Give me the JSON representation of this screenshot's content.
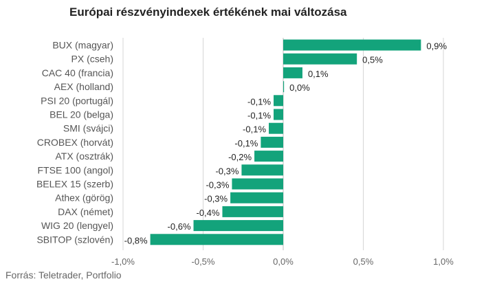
{
  "chart_data": {
    "type": "bar",
    "orientation": "horizontal",
    "title": "Európai részvényindexek értékének mai változása",
    "xlabel": "",
    "ylabel": "",
    "xlim": [
      -1.0,
      1.0
    ],
    "x_ticks": [
      -1.0,
      -0.5,
      0.0,
      0.5,
      1.0
    ],
    "x_tick_labels": [
      "-1,0%",
      "-0,5%",
      "0,0%",
      "0,5%",
      "1,0%"
    ],
    "grid": true,
    "bar_color": "#13a37b",
    "categories": [
      "BUX (magyar)",
      "PX (cseh)",
      "CAC 40 (francia)",
      "AEX (holland)",
      "PSI 20 (portugál)",
      "BEL 20 (belga)",
      "SMI (svájci)",
      "CROBEX (horvát)",
      "ATX (osztrák)",
      "FTSE 100 (angol)",
      "BELEX 15 (szerb)",
      "Athex (görög)",
      "DAX (német)",
      "WIG 20 (lengyel)",
      "SBITOP (szlovén)"
    ],
    "values": [
      0.86,
      0.46,
      0.12,
      0.005,
      -0.06,
      -0.06,
      -0.09,
      -0.14,
      -0.18,
      -0.26,
      -0.32,
      -0.33,
      -0.38,
      -0.56,
      -0.83
    ],
    "value_labels": [
      "0,9%",
      "0,5%",
      "0,1%",
      "0,0%",
      "-0,1%",
      "-0,1%",
      "-0,1%",
      "-0,1%",
      "-0,2%",
      "-0,3%",
      "-0,3%",
      "-0,3%",
      "-0,4%",
      "-0,6%",
      "-0,8%"
    ]
  },
  "source": "Forrás: Teletrader, Portfolio"
}
